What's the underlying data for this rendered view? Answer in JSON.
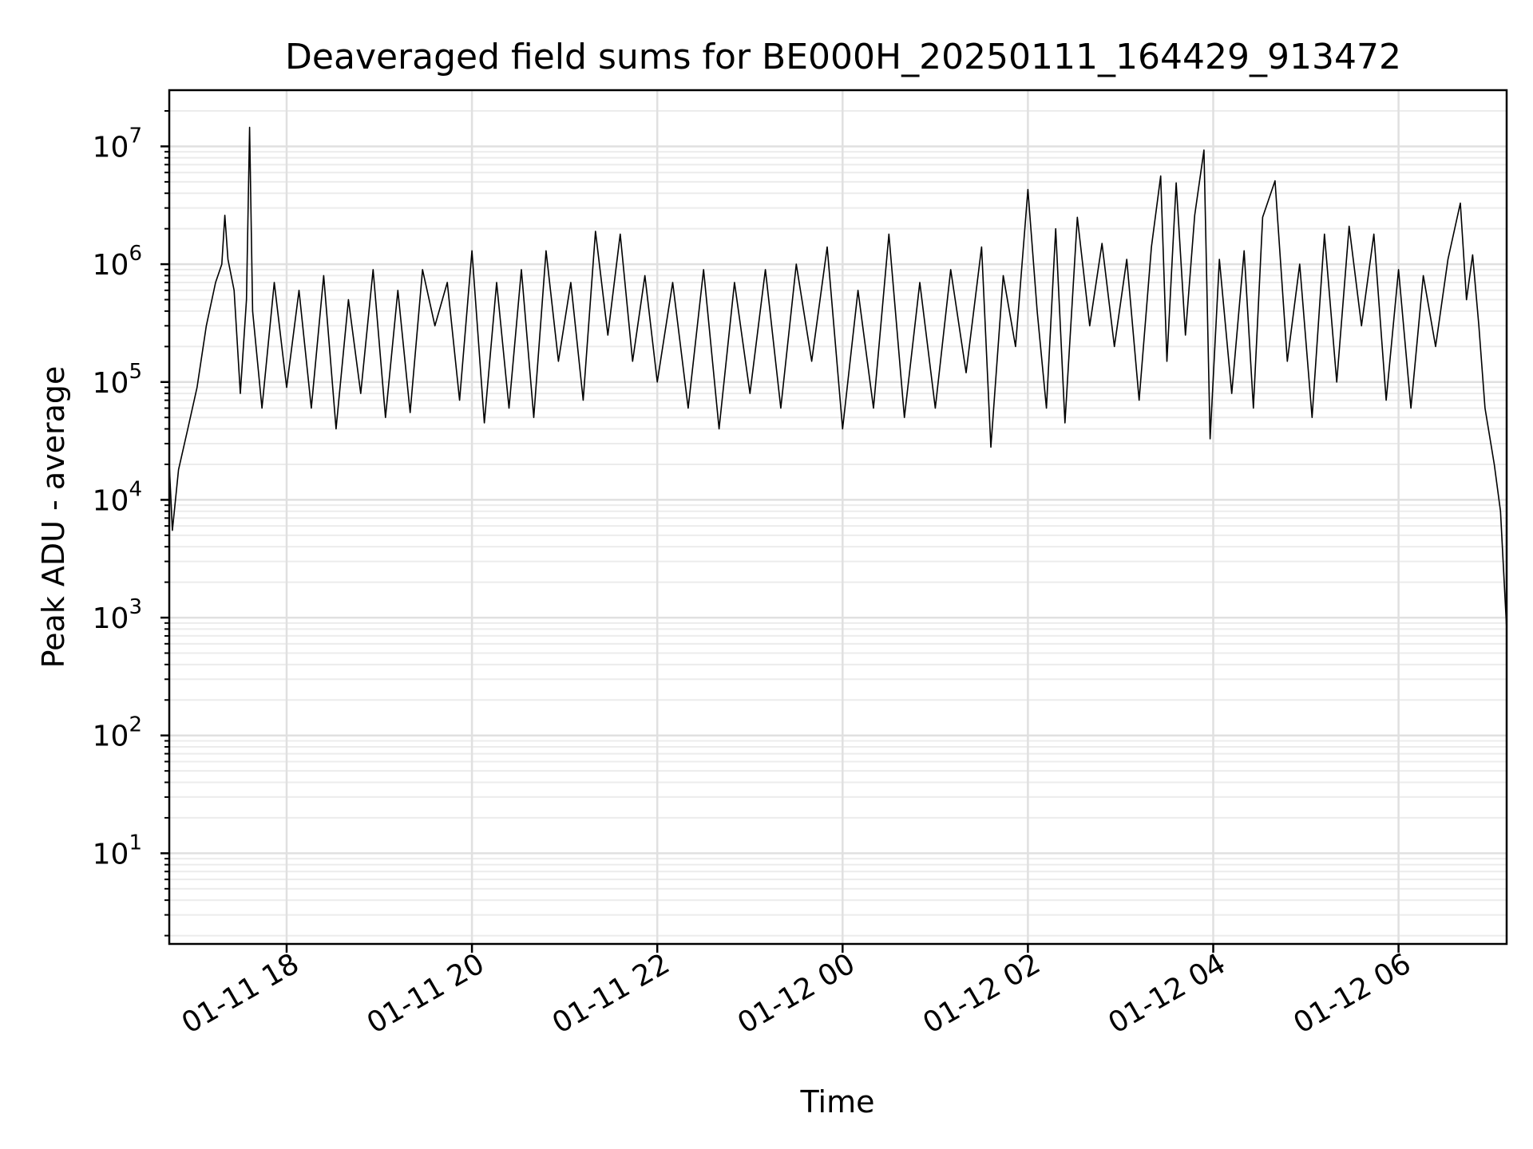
{
  "chart_data": {
    "type": "line",
    "title": "Deaveraged field sums for BE000H_20250111_164429_913472",
    "xlabel": "Time",
    "ylabel": "Peak ADU - average",
    "yscale": "log",
    "ylim": [
      1.7,
      30000000
    ],
    "xlim": [
      "2025-01-11 16:44",
      "2025-01-12 07:10"
    ],
    "grid": true,
    "x_ticks": [
      {
        "value": "2025-01-11 18:00",
        "label": "01-11 18"
      },
      {
        "value": "2025-01-11 20:00",
        "label": "01-11 20"
      },
      {
        "value": "2025-01-11 22:00",
        "label": "01-11 22"
      },
      {
        "value": "2025-01-12 00:00",
        "label": "01-12 00"
      },
      {
        "value": "2025-01-12 02:00",
        "label": "01-12 02"
      },
      {
        "value": "2025-01-12 04:00",
        "label": "01-12 04"
      },
      {
        "value": "2025-01-12 06:00",
        "label": "01-12 06"
      }
    ],
    "y_ticks": [
      {
        "value": 10,
        "base": "10",
        "exp": "1"
      },
      {
        "value": 100,
        "base": "10",
        "exp": "2"
      },
      {
        "value": 1000,
        "base": "10",
        "exp": "3"
      },
      {
        "value": 10000,
        "base": "10",
        "exp": "4"
      },
      {
        "value": 100000,
        "base": "10",
        "exp": "5"
      },
      {
        "value": 1000000,
        "base": "10",
        "exp": "6"
      },
      {
        "value": 10000000,
        "base": "10",
        "exp": "7"
      }
    ],
    "series": [
      {
        "color": "#000000",
        "points": [
          [
            "2025-01-11 16:44",
            20000
          ],
          [
            "2025-01-11 16:46",
            5500
          ],
          [
            "2025-01-11 16:50",
            18000
          ],
          [
            "2025-01-11 16:56",
            40000
          ],
          [
            "2025-01-11 17:02",
            90000
          ],
          [
            "2025-01-11 17:08",
            300000
          ],
          [
            "2025-01-11 17:14",
            700000
          ],
          [
            "2025-01-11 17:18",
            1000000
          ],
          [
            "2025-01-11 17:20",
            2600000
          ],
          [
            "2025-01-11 17:22",
            1100000
          ],
          [
            "2025-01-11 17:26",
            600000
          ],
          [
            "2025-01-11 17:30",
            80000
          ],
          [
            "2025-01-11 17:34",
            500000
          ],
          [
            "2025-01-11 17:36",
            14500000
          ],
          [
            "2025-01-11 17:38",
            400000
          ],
          [
            "2025-01-11 17:44",
            60000
          ],
          [
            "2025-01-11 17:52",
            700000
          ],
          [
            "2025-01-11 18:00",
            90000
          ],
          [
            "2025-01-11 18:08",
            600000
          ],
          [
            "2025-01-11 18:16",
            60000
          ],
          [
            "2025-01-11 18:24",
            800000
          ],
          [
            "2025-01-11 18:32",
            40000
          ],
          [
            "2025-01-11 18:40",
            500000
          ],
          [
            "2025-01-11 18:48",
            80000
          ],
          [
            "2025-01-11 18:56",
            900000
          ],
          [
            "2025-01-11 19:04",
            50000
          ],
          [
            "2025-01-11 19:12",
            600000
          ],
          [
            "2025-01-11 19:20",
            55000
          ],
          [
            "2025-01-11 19:28",
            900000
          ],
          [
            "2025-01-11 19:36",
            300000
          ],
          [
            "2025-01-11 19:44",
            700000
          ],
          [
            "2025-01-11 19:52",
            70000
          ],
          [
            "2025-01-11 20:00",
            1300000
          ],
          [
            "2025-01-11 20:08",
            45000
          ],
          [
            "2025-01-11 20:16",
            700000
          ],
          [
            "2025-01-11 20:24",
            60000
          ],
          [
            "2025-01-11 20:32",
            900000
          ],
          [
            "2025-01-11 20:40",
            50000
          ],
          [
            "2025-01-11 20:48",
            1300000
          ],
          [
            "2025-01-11 20:56",
            150000
          ],
          [
            "2025-01-11 21:04",
            700000
          ],
          [
            "2025-01-11 21:12",
            70000
          ],
          [
            "2025-01-11 21:20",
            1900000
          ],
          [
            "2025-01-11 21:28",
            250000
          ],
          [
            "2025-01-11 21:36",
            1800000
          ],
          [
            "2025-01-11 21:44",
            150000
          ],
          [
            "2025-01-11 21:52",
            800000
          ],
          [
            "2025-01-11 22:00",
            100000
          ],
          [
            "2025-01-11 22:10",
            700000
          ],
          [
            "2025-01-11 22:20",
            60000
          ],
          [
            "2025-01-11 22:30",
            900000
          ],
          [
            "2025-01-11 22:40",
            40000
          ],
          [
            "2025-01-11 22:50",
            700000
          ],
          [
            "2025-01-11 23:00",
            80000
          ],
          [
            "2025-01-11 23:10",
            900000
          ],
          [
            "2025-01-11 23:20",
            60000
          ],
          [
            "2025-01-11 23:30",
            1000000
          ],
          [
            "2025-01-11 23:40",
            150000
          ],
          [
            "2025-01-11 23:50",
            1400000
          ],
          [
            "2025-01-12 00:00",
            40000
          ],
          [
            "2025-01-12 00:10",
            600000
          ],
          [
            "2025-01-12 00:20",
            60000
          ],
          [
            "2025-01-12 00:30",
            1800000
          ],
          [
            "2025-01-12 00:40",
            50000
          ],
          [
            "2025-01-12 00:50",
            700000
          ],
          [
            "2025-01-12 01:00",
            60000
          ],
          [
            "2025-01-12 01:10",
            900000
          ],
          [
            "2025-01-12 01:20",
            120000
          ],
          [
            "2025-01-12 01:30",
            1400000
          ],
          [
            "2025-01-12 01:36",
            28000
          ],
          [
            "2025-01-12 01:44",
            800000
          ],
          [
            "2025-01-12 01:52",
            200000
          ],
          [
            "2025-01-12 02:00",
            4300000
          ],
          [
            "2025-01-12 02:06",
            400000
          ],
          [
            "2025-01-12 02:12",
            60000
          ],
          [
            "2025-01-12 02:18",
            2000000
          ],
          [
            "2025-01-12 02:24",
            45000
          ],
          [
            "2025-01-12 02:32",
            2500000
          ],
          [
            "2025-01-12 02:40",
            300000
          ],
          [
            "2025-01-12 02:48",
            1500000
          ],
          [
            "2025-01-12 02:56",
            200000
          ],
          [
            "2025-01-12 03:04",
            1100000
          ],
          [
            "2025-01-12 03:12",
            70000
          ],
          [
            "2025-01-12 03:20",
            1400000
          ],
          [
            "2025-01-12 03:26",
            5600000
          ],
          [
            "2025-01-12 03:30",
            150000
          ],
          [
            "2025-01-12 03:36",
            4900000
          ],
          [
            "2025-01-12 03:42",
            250000
          ],
          [
            "2025-01-12 03:48",
            2600000
          ],
          [
            "2025-01-12 03:54",
            9300000
          ],
          [
            "2025-01-12 03:58",
            33000
          ],
          [
            "2025-01-12 04:04",
            1100000
          ],
          [
            "2025-01-12 04:12",
            80000
          ],
          [
            "2025-01-12 04:20",
            1300000
          ],
          [
            "2025-01-12 04:26",
            60000
          ],
          [
            "2025-01-12 04:32",
            2500000
          ],
          [
            "2025-01-12 04:40",
            5100000
          ],
          [
            "2025-01-12 04:48",
            150000
          ],
          [
            "2025-01-12 04:56",
            1000000
          ],
          [
            "2025-01-12 05:04",
            50000
          ],
          [
            "2025-01-12 05:12",
            1800000
          ],
          [
            "2025-01-12 05:20",
            100000
          ],
          [
            "2025-01-12 05:28",
            2100000
          ],
          [
            "2025-01-12 05:36",
            300000
          ],
          [
            "2025-01-12 05:44",
            1800000
          ],
          [
            "2025-01-12 05:52",
            70000
          ],
          [
            "2025-01-12 06:00",
            900000
          ],
          [
            "2025-01-12 06:08",
            60000
          ],
          [
            "2025-01-12 06:16",
            800000
          ],
          [
            "2025-01-12 06:24",
            200000
          ],
          [
            "2025-01-12 06:32",
            1100000
          ],
          [
            "2025-01-12 06:40",
            3300000
          ],
          [
            "2025-01-12 06:44",
            500000
          ],
          [
            "2025-01-12 06:48",
            1200000
          ],
          [
            "2025-01-12 06:52",
            300000
          ],
          [
            "2025-01-12 06:56",
            60000
          ],
          [
            "2025-01-12 07:02",
            20000
          ],
          [
            "2025-01-12 07:06",
            8000
          ],
          [
            "2025-01-12 07:10",
            800
          ]
        ]
      }
    ]
  }
}
